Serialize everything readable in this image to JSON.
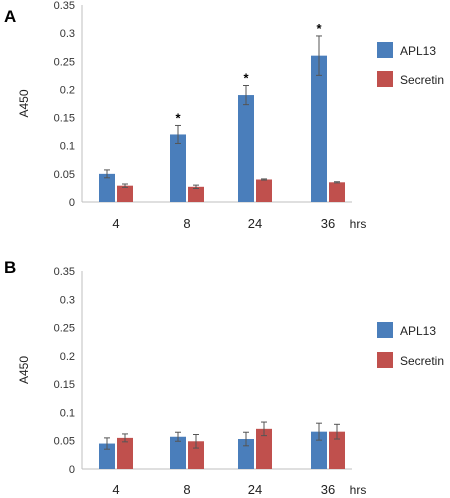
{
  "chart_data": [
    {
      "panel_label": "A",
      "type": "bar",
      "ylabel": "A450",
      "x_unit": "hrs",
      "categories": [
        "4",
        "8",
        "24",
        "36"
      ],
      "yticks": [
        "0",
        "0.05",
        "0.1",
        "0.15",
        "0.2",
        "0.25",
        "0.3",
        "0.35"
      ],
      "ylim": [
        0,
        0.35
      ],
      "grid": false,
      "legend_position": "right",
      "significance_marker": "*",
      "series": [
        {
          "name": "APL13",
          "color": "#4a7ebb",
          "values": [
            0.05,
            0.12,
            0.19,
            0.26
          ],
          "errors": [
            0.007,
            0.016,
            0.017,
            0.035
          ],
          "significant": [
            false,
            true,
            true,
            true
          ]
        },
        {
          "name": "Secretin",
          "color": "#c0504d",
          "values": [
            0.029,
            0.027,
            0.04,
            0.035
          ],
          "errors": [
            0.003,
            0.003,
            0.001,
            0.001
          ],
          "significant": [
            false,
            false,
            false,
            false
          ]
        }
      ]
    },
    {
      "panel_label": "B",
      "type": "bar",
      "ylabel": "A450",
      "x_unit": "hrs",
      "categories": [
        "4",
        "8",
        "24",
        "36"
      ],
      "yticks": [
        "0",
        "0.05",
        "0.1",
        "0.15",
        "0.2",
        "0.25",
        "0.3",
        "0.35"
      ],
      "ylim": [
        0,
        0.35
      ],
      "grid": false,
      "legend_position": "right",
      "series": [
        {
          "name": "APL13",
          "color": "#4a7ebb",
          "values": [
            0.045,
            0.057,
            0.053,
            0.066
          ],
          "errors": [
            0.01,
            0.008,
            0.012,
            0.015
          ]
        },
        {
          "name": "Secretin",
          "color": "#c0504d",
          "values": [
            0.055,
            0.049,
            0.071,
            0.066
          ],
          "errors": [
            0.007,
            0.012,
            0.012,
            0.013
          ]
        }
      ]
    }
  ]
}
